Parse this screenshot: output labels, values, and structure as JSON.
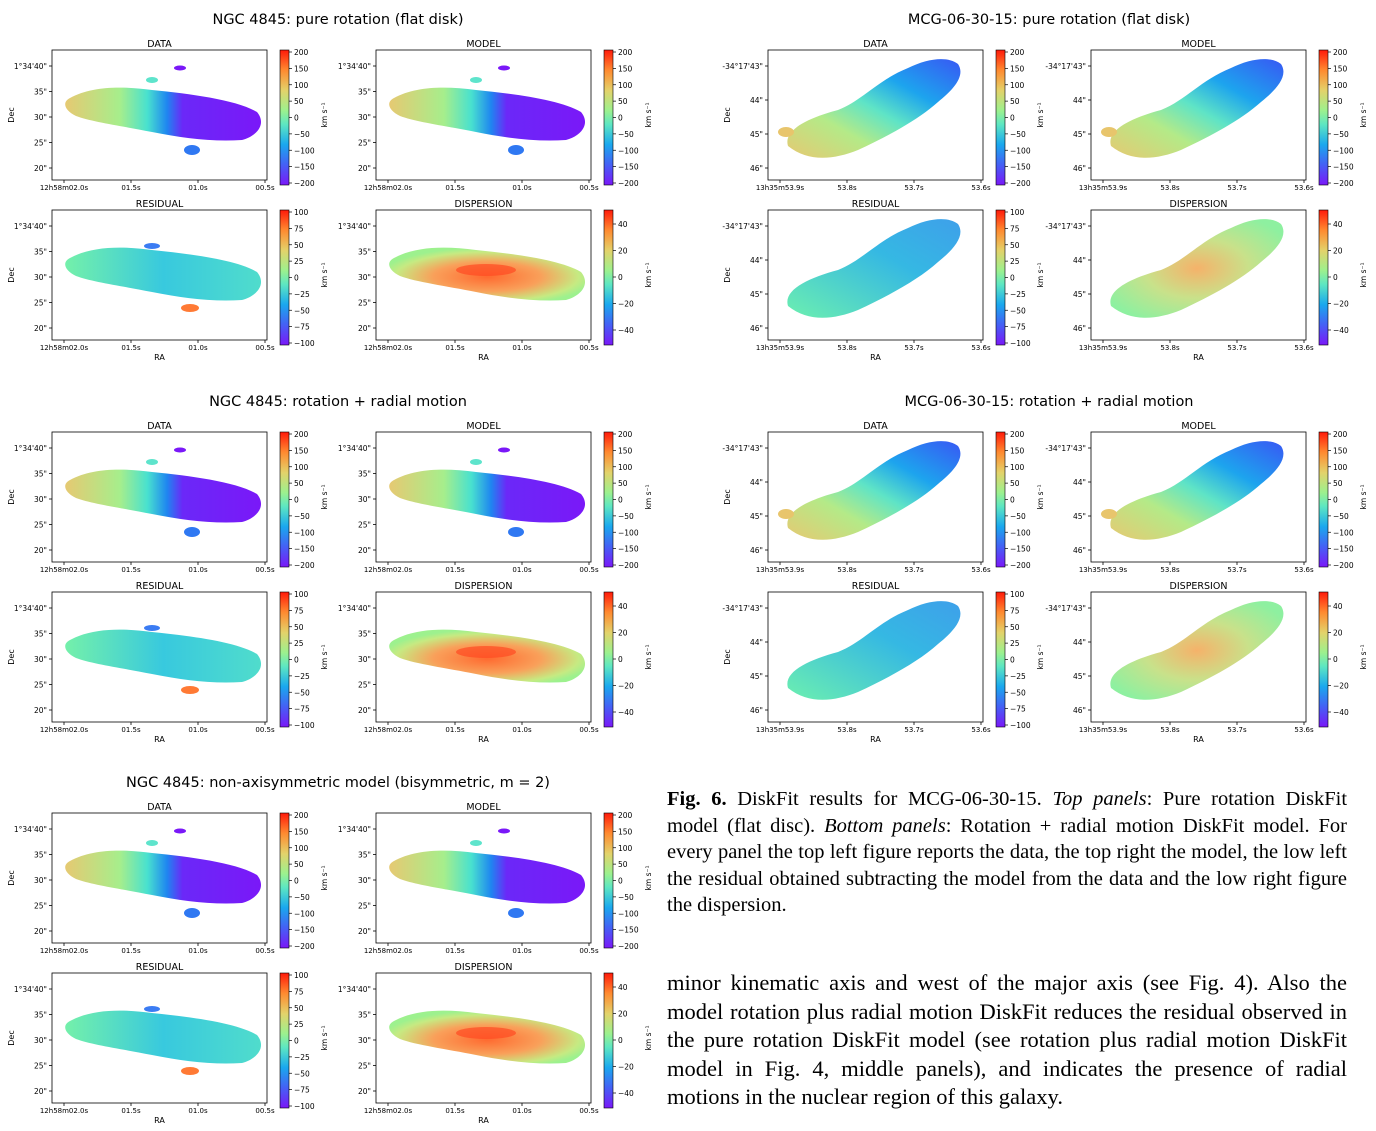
{
  "figures": [
    {
      "id": "ngc-pure",
      "title": "NGC 4845: pure rotation (flat disk)",
      "object": "ngc"
    },
    {
      "id": "mcg-pure",
      "title": "MCG-06-30-15: pure rotation (flat disk)",
      "object": "mcg"
    },
    {
      "id": "ngc-radial",
      "title": "NGC 4845: rotation + radial motion",
      "object": "ngc"
    },
    {
      "id": "mcg-radial",
      "title": "MCG-06-30-15: rotation + radial motion",
      "object": "mcg"
    },
    {
      "id": "ngc-bisym",
      "title": "NGC 4845: non-axisymmetric model (bisymmetric, m = 2)",
      "object": "ngc"
    }
  ],
  "panel_titles": [
    "DATA",
    "MODEL",
    "RESIDUAL",
    "DISPERSION"
  ],
  "axes": {
    "xlabel": "RA",
    "ylabel": "Dec",
    "cbar_label": "km s",
    "ngc": {
      "xticks": [
        "12h58m02.0s",
        "01.5s",
        "01.0s",
        "00.5s"
      ],
      "yticks": [
        "1°34'40\"",
        "35\"",
        "30\"",
        "25\"",
        "20\""
      ]
    },
    "mcg": {
      "xticks": [
        "13h35m53.9s",
        "53.8s",
        "53.7s",
        "53.6s"
      ],
      "yticks": [
        "-34°17'43\"",
        "44\"",
        "45\"",
        "46\""
      ]
    }
  },
  "colorbars": {
    "velocity": [
      200,
      150,
      100,
      50,
      0,
      -50,
      -100,
      -150,
      -200
    ],
    "residual": [
      100,
      75,
      50,
      25,
      0,
      -25,
      -50,
      -75,
      -100
    ],
    "dispersion": [
      40,
      20,
      0,
      -20,
      -40
    ]
  },
  "caption": {
    "label": "Fig. 6.",
    "text1": " DiskFit results for MCG-06-30-15. ",
    "top_label": "Top panels",
    "text2": ": Pure rotation DiskFit model (flat disc). ",
    "bottom_label": "Bottom panels",
    "text3": ": Rotation + radial motion DiskFit model. For every panel the top left figure reports the data, the top right the model, the low left the residual obtained subtracting the model from the data and the low right figure the dispersion."
  },
  "body_text": "minor kinematic axis and west of the major axis (see Fig. 4). Also the model rotation plus radial motion DiskFit reduces the residual observed in the pure rotation DiskFit model (see rotation plus radial motion DiskFit model in Fig. 4, middle panels), and indicates the presence of radial motions in the nuclear region of this galaxy."
}
